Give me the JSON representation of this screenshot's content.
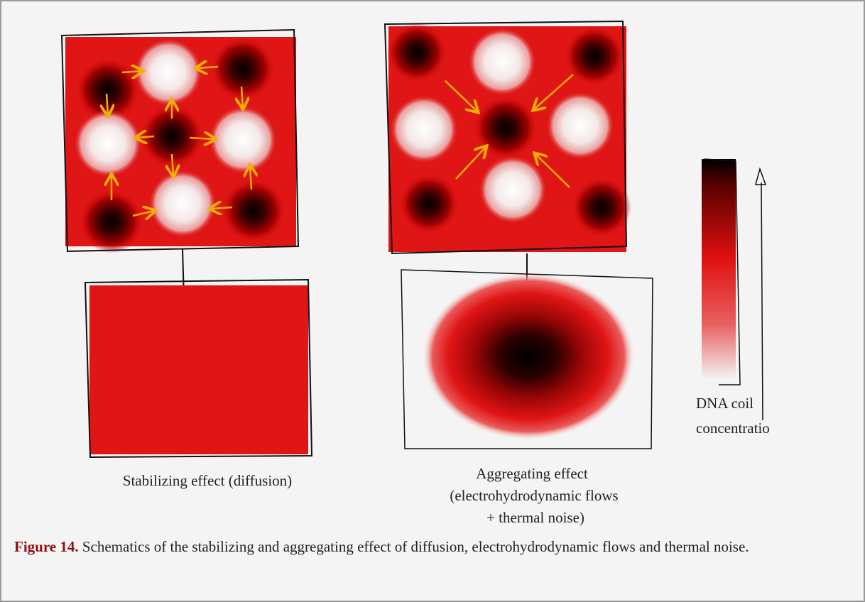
{
  "figure": {
    "labels": {
      "stabilizing": "Stabilizing effect (diffusion)",
      "aggregating": [
        "Aggregating effect",
        "(electrohydrodynamic flows",
        "+ thermal noise)"
      ],
      "colorbar": [
        "DNA coil",
        "concentratio"
      ]
    },
    "caption": {
      "label": "Figure 14.",
      "text": "Schematics of the stabilizing and aggregating effect of diffusion, electrohydrodynamic flows and thermal noise."
    }
  }
}
